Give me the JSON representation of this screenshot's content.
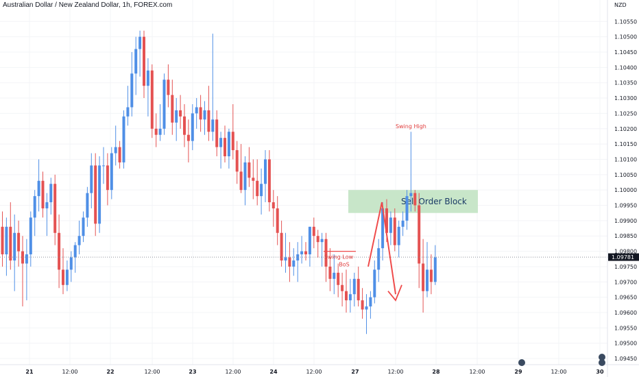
{
  "header": {
    "title": "Australian Dollar / New Zealand Dollar, 1h, FOREX.com"
  },
  "colors": {
    "up": "#4f8fe6",
    "down": "#e45252",
    "zone": "#c8e6c9",
    "arrow": "#ef4b4b",
    "last_price_bg": "#131722"
  },
  "chart_data": {
    "type": "candlestick",
    "title": "Australian Dollar / New Zealand Dollar, 1h, FOREX.com",
    "currency": "NZD",
    "y_axis": {
      "ylim": [
        1.0943,
        1.1062
      ],
      "ticks": [
        "1.10550",
        "1.10500",
        "1.10450",
        "1.10400",
        "1.10350",
        "1.10300",
        "1.10250",
        "1.10200",
        "1.10150",
        "1.10100",
        "1.10050",
        "1.10000",
        "1.09950",
        "1.09900",
        "1.09850",
        "1.09800",
        "1.09750",
        "1.09700",
        "1.09650",
        "1.09600",
        "1.09550",
        "1.09500",
        "1.09450"
      ]
    },
    "x_axis": {
      "ticks": [
        "21",
        "12:00",
        "22",
        "12:00",
        "23",
        "12:00",
        "24",
        "12:00",
        "27",
        "12:00",
        "28",
        "12:00",
        "29",
        "12:00",
        "30"
      ],
      "major": [
        "21",
        "22",
        "23",
        "24",
        "27",
        "28",
        "29",
        "30"
      ]
    },
    "last_price": "1.09781",
    "candles": [
      {
        "o": 1.0988,
        "h": 1.0993,
        "l": 1.0975,
        "c": 1.0979
      },
      {
        "o": 1.0979,
        "h": 1.0991,
        "l": 1.0972,
        "c": 1.0988
      },
      {
        "o": 1.0988,
        "h": 1.0996,
        "l": 1.0974,
        "c": 1.0977
      },
      {
        "o": 1.0977,
        "h": 1.0992,
        "l": 1.0967,
        "c": 1.0986
      },
      {
        "o": 1.0986,
        "h": 1.099,
        "l": 1.0975,
        "c": 1.098
      },
      {
        "o": 1.098,
        "h": 1.0985,
        "l": 1.0962,
        "c": 1.0976
      },
      {
        "o": 1.0976,
        "h": 1.0984,
        "l": 1.0964,
        "c": 1.0979
      },
      {
        "o": 1.0979,
        "h": 1.0993,
        "l": 1.0975,
        "c": 1.0991
      },
      {
        "o": 1.0991,
        "h": 1.1,
        "l": 1.0985,
        "c": 1.0998
      },
      {
        "o": 1.0998,
        "h": 1.101,
        "l": 1.0993,
        "c": 1.1003
      },
      {
        "o": 1.1003,
        "h": 1.1006,
        "l": 1.0991,
        "c": 1.0994
      },
      {
        "o": 1.0994,
        "h": 1.0999,
        "l": 1.0985,
        "c": 1.0996
      },
      {
        "o": 1.0996,
        "h": 1.1004,
        "l": 1.0992,
        "c": 1.1002
      },
      {
        "o": 1.1002,
        "h": 1.1005,
        "l": 1.0982,
        "c": 1.0986
      },
      {
        "o": 1.0986,
        "h": 1.0992,
        "l": 1.0968,
        "c": 1.0974
      },
      {
        "o": 1.0974,
        "h": 1.0981,
        "l": 1.0966,
        "c": 1.0969
      },
      {
        "o": 1.0969,
        "h": 1.0977,
        "l": 1.0967,
        "c": 1.0974
      },
      {
        "o": 1.0974,
        "h": 1.098,
        "l": 1.097,
        "c": 1.0978
      },
      {
        "o": 1.0978,
        "h": 1.0983,
        "l": 1.0973,
        "c": 1.0982
      },
      {
        "o": 1.0982,
        "h": 1.099,
        "l": 1.0979,
        "c": 1.0985
      },
      {
        "o": 1.0985,
        "h": 1.0993,
        "l": 1.0983,
        "c": 1.0991
      },
      {
        "o": 1.0991,
        "h": 1.1001,
        "l": 1.0988,
        "c": 1.0999
      },
      {
        "o": 1.0999,
        "h": 1.1012,
        "l": 1.0994,
        "c": 1.1008
      },
      {
        "o": 1.1008,
        "h": 1.1012,
        "l": 1.0985,
        "c": 1.0989
      },
      {
        "o": 1.0989,
        "h": 1.1011,
        "l": 1.0986,
        "c": 1.1008
      },
      {
        "o": 1.1008,
        "h": 1.1014,
        "l": 1.1002,
        "c": 1.1008
      },
      {
        "o": 1.1008,
        "h": 1.1012,
        "l": 1.0995,
        "c": 1.1
      },
      {
        "o": 1.1,
        "h": 1.1014,
        "l": 1.0997,
        "c": 1.1012
      },
      {
        "o": 1.1012,
        "h": 1.1021,
        "l": 1.1008,
        "c": 1.1014
      },
      {
        "o": 1.1014,
        "h": 1.1016,
        "l": 1.1007,
        "c": 1.1009
      },
      {
        "o": 1.1009,
        "h": 1.1026,
        "l": 1.1007,
        "c": 1.1024
      },
      {
        "o": 1.1024,
        "h": 1.1034,
        "l": 1.1021,
        "c": 1.1027
      },
      {
        "o": 1.1027,
        "h": 1.1045,
        "l": 1.1024,
        "c": 1.1038
      },
      {
        "o": 1.1038,
        "h": 1.105,
        "l": 1.1031,
        "c": 1.1046
      },
      {
        "o": 1.1046,
        "h": 1.1052,
        "l": 1.1037,
        "c": 1.105
      },
      {
        "o": 1.105,
        "h": 1.1052,
        "l": 1.103,
        "c": 1.1034
      },
      {
        "o": 1.1034,
        "h": 1.1043,
        "l": 1.1024,
        "c": 1.1039
      },
      {
        "o": 1.1039,
        "h": 1.1041,
        "l": 1.1017,
        "c": 1.102
      },
      {
        "o": 1.102,
        "h": 1.1025,
        "l": 1.1014,
        "c": 1.1018
      },
      {
        "o": 1.1018,
        "h": 1.1028,
        "l": 1.1016,
        "c": 1.102
      },
      {
        "o": 1.102,
        "h": 1.1038,
        "l": 1.1018,
        "c": 1.1036
      },
      {
        "o": 1.1036,
        "h": 1.1041,
        "l": 1.1027,
        "c": 1.1031
      },
      {
        "o": 1.1031,
        "h": 1.1036,
        "l": 1.1018,
        "c": 1.1022
      },
      {
        "o": 1.1022,
        "h": 1.103,
        "l": 1.1016,
        "c": 1.1026
      },
      {
        "o": 1.1026,
        "h": 1.1031,
        "l": 1.102,
        "c": 1.1024
      },
      {
        "o": 1.1024,
        "h": 1.1028,
        "l": 1.1014,
        "c": 1.1018
      },
      {
        "o": 1.1018,
        "h": 1.1023,
        "l": 1.1009,
        "c": 1.1016
      },
      {
        "o": 1.1016,
        "h": 1.1028,
        "l": 1.1013,
        "c": 1.1025
      },
      {
        "o": 1.1025,
        "h": 1.103,
        "l": 1.102,
        "c": 1.1027
      },
      {
        "o": 1.1027,
        "h": 1.1031,
        "l": 1.1019,
        "c": 1.1023
      },
      {
        "o": 1.1023,
        "h": 1.1029,
        "l": 1.1018,
        "c": 1.1026
      },
      {
        "o": 1.1026,
        "h": 1.1034,
        "l": 1.1016,
        "c": 1.1019
      },
      {
        "o": 1.1019,
        "h": 1.1051,
        "l": 1.1016,
        "c": 1.1023
      },
      {
        "o": 1.1023,
        "h": 1.1026,
        "l": 1.1011,
        "c": 1.1014
      },
      {
        "o": 1.1014,
        "h": 1.1019,
        "l": 1.1007,
        "c": 1.1017
      },
      {
        "o": 1.1017,
        "h": 1.1021,
        "l": 1.1009,
        "c": 1.1011
      },
      {
        "o": 1.1011,
        "h": 1.102,
        "l": 1.1007,
        "c": 1.1019
      },
      {
        "o": 1.1019,
        "h": 1.1028,
        "l": 1.101,
        "c": 1.1013
      },
      {
        "o": 1.1013,
        "h": 1.1016,
        "l": 1.1002,
        "c": 1.1006
      },
      {
        "o": 1.1006,
        "h": 1.1015,
        "l": 1.0999,
        "c": 1.1
      },
      {
        "o": 1.1,
        "h": 1.1011,
        "l": 1.0995,
        "c": 1.1009
      },
      {
        "o": 1.1009,
        "h": 1.1014,
        "l": 1.1001,
        "c": 1.1004
      },
      {
        "o": 1.1004,
        "h": 1.101,
        "l": 1.0997,
        "c": 1.1003
      },
      {
        "o": 1.1003,
        "h": 1.101,
        "l": 1.0995,
        "c": 1.0998
      },
      {
        "o": 1.0998,
        "h": 1.1007,
        "l": 1.0992,
        "c": 1.1002
      },
      {
        "o": 1.1002,
        "h": 1.1013,
        "l": 1.0996,
        "c": 1.101
      },
      {
        "o": 1.101,
        "h": 1.1013,
        "l": 1.0993,
        "c": 1.0996
      },
      {
        "o": 1.0996,
        "h": 1.1,
        "l": 1.0988,
        "c": 1.0994
      },
      {
        "o": 1.0994,
        "h": 1.0998,
        "l": 1.0982,
        "c": 1.0986
      },
      {
        "o": 1.0986,
        "h": 1.099,
        "l": 1.0975,
        "c": 1.0977
      },
      {
        "o": 1.0977,
        "h": 1.0986,
        "l": 1.0973,
        "c": 1.0978
      },
      {
        "o": 1.0978,
        "h": 1.0983,
        "l": 1.097,
        "c": 1.0975
      },
      {
        "o": 1.0975,
        "h": 1.0981,
        "l": 1.0972,
        "c": 1.0977
      },
      {
        "o": 1.0977,
        "h": 1.0983,
        "l": 1.097,
        "c": 1.0979
      },
      {
        "o": 1.0979,
        "h": 1.0985,
        "l": 1.0976,
        "c": 1.098
      },
      {
        "o": 1.098,
        "h": 1.0983,
        "l": 1.0977,
        "c": 1.0979
      },
      {
        "o": 1.0979,
        "h": 1.0988,
        "l": 1.0975,
        "c": 1.0988
      },
      {
        "o": 1.0988,
        "h": 1.0991,
        "l": 1.0981,
        "c": 1.0985
      },
      {
        "o": 1.0985,
        "h": 1.0987,
        "l": 1.0978,
        "c": 1.0983
      },
      {
        "o": 1.0983,
        "h": 1.0986,
        "l": 1.0975,
        "c": 1.0984
      },
      {
        "o": 1.0984,
        "h": 1.0986,
        "l": 1.097,
        "c": 1.0975
      },
      {
        "o": 1.0975,
        "h": 1.0981,
        "l": 1.0967,
        "c": 1.0971
      },
      {
        "o": 1.0971,
        "h": 1.0979,
        "l": 1.0966,
        "c": 1.0973
      },
      {
        "o": 1.0973,
        "h": 1.0976,
        "l": 1.0965,
        "c": 1.0969
      },
      {
        "o": 1.0969,
        "h": 1.0973,
        "l": 1.0962,
        "c": 1.0967
      },
      {
        "o": 1.0967,
        "h": 1.0974,
        "l": 1.096,
        "c": 1.0964
      },
      {
        "o": 1.0964,
        "h": 1.0971,
        "l": 1.096,
        "c": 1.0966
      },
      {
        "o": 1.0966,
        "h": 1.0973,
        "l": 1.0962,
        "c": 1.0971
      },
      {
        "o": 1.0971,
        "h": 1.0975,
        "l": 1.0962,
        "c": 1.0964
      },
      {
        "o": 1.0964,
        "h": 1.0968,
        "l": 1.0958,
        "c": 1.0961
      },
      {
        "o": 1.0961,
        "h": 1.0966,
        "l": 1.0953,
        "c": 1.0962
      },
      {
        "o": 1.0962,
        "h": 1.0967,
        "l": 1.0958,
        "c": 1.0965
      },
      {
        "o": 1.0965,
        "h": 1.0977,
        "l": 1.0963,
        "c": 1.0974
      },
      {
        "o": 1.0974,
        "h": 1.0984,
        "l": 1.097,
        "c": 1.0981
      },
      {
        "o": 1.0981,
        "h": 1.0996,
        "l": 1.0977,
        "c": 1.0994
      },
      {
        "o": 1.0994,
        "h": 1.0997,
        "l": 1.0983,
        "c": 1.0986
      },
      {
        "o": 1.0986,
        "h": 1.0993,
        "l": 1.0982,
        "c": 1.0991
      },
      {
        "o": 1.0991,
        "h": 1.0994,
        "l": 1.098,
        "c": 1.0982
      },
      {
        "o": 1.0982,
        "h": 1.099,
        "l": 1.0978,
        "c": 1.0988
      },
      {
        "o": 1.0988,
        "h": 1.0993,
        "l": 1.0985,
        "c": 1.099
      },
      {
        "o": 1.099,
        "h": 1.1,
        "l": 1.0987,
        "c": 1.0998
      },
      {
        "o": 1.0998,
        "h": 1.1019,
        "l": 1.0993,
        "c": 1.0999
      },
      {
        "o": 1.0999,
        "h": 1.1,
        "l": 1.0993,
        "c": 1.0995
      },
      {
        "o": 1.0995,
        "h": 1.0999,
        "l": 1.0968,
        "c": 1.0976
      },
      {
        "o": 1.0976,
        "h": 1.0984,
        "l": 1.096,
        "c": 1.0967
      },
      {
        "o": 1.0967,
        "h": 1.0983,
        "l": 1.0965,
        "c": 1.0974
      },
      {
        "o": 1.0974,
        "h": 1.0979,
        "l": 1.0966,
        "c": 1.097
      },
      {
        "o": 1.097,
        "h": 1.0982,
        "l": 1.0969,
        "c": 1.0978
      }
    ],
    "annotations": {
      "swing_high": "Swing High",
      "swing_low": "Swing Low",
      "bos": "BoS",
      "order_block": "Sell Order Block",
      "order_block_range": [
        1.09925,
        1.1
      ]
    }
  }
}
